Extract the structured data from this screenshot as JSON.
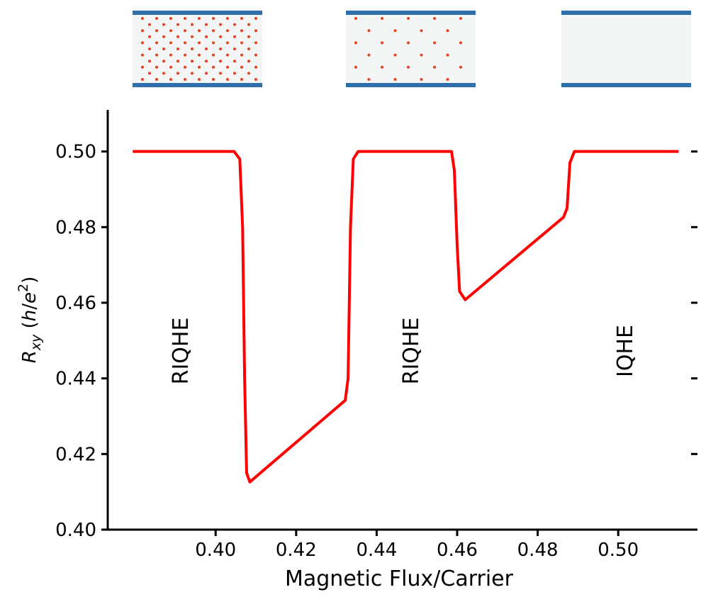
{
  "chart_data": {
    "type": "line",
    "xlabel": "Magnetic Flux/Carrier",
    "ylabel": [
      "R",
      "xy",
      " (",
      "h",
      "/",
      "e",
      "2",
      ")"
    ],
    "annotations": [
      "RIQHE",
      "RIQHE",
      "IQHE"
    ],
    "xlim": [
      0.3732,
      0.5181
    ],
    "ylim": [
      0.4,
      0.511
    ],
    "xticks": [
      {
        "value": 0.4,
        "label": "0.40"
      },
      {
        "value": 0.42,
        "label": "0.42"
      },
      {
        "value": 0.44,
        "label": "0.44"
      },
      {
        "value": 0.46,
        "label": "0.46"
      },
      {
        "value": 0.48,
        "label": "0.48"
      },
      {
        "value": 0.5,
        "label": "0.50"
      }
    ],
    "yticks": [
      {
        "value": 0.4,
        "label": "0.40"
      },
      {
        "value": 0.42,
        "label": "0.42"
      },
      {
        "value": 0.44,
        "label": "0.44"
      },
      {
        "value": 0.46,
        "label": "0.46"
      },
      {
        "value": 0.48,
        "label": "0.48"
      },
      {
        "value": 0.5,
        "label": "0.50"
      }
    ],
    "series": [
      {
        "color": "#ff0000",
        "x": [
          0.3794,
          0.4046,
          0.406,
          0.4067,
          0.4072,
          0.4077,
          0.4085,
          0.4322,
          0.4329,
          0.4335,
          0.4342,
          0.4354,
          0.4586,
          0.4593,
          0.46,
          0.4606,
          0.462,
          0.4864,
          0.4873,
          0.488,
          0.4891,
          0.515
        ],
        "values": [
          0.5,
          0.5,
          0.498,
          0.48,
          0.44,
          0.415,
          0.4126,
          0.4342,
          0.44,
          0.48,
          0.498,
          0.5,
          0.5,
          0.495,
          0.475,
          0.463,
          0.4608,
          0.4826,
          0.485,
          0.497,
          0.5,
          0.5
        ]
      }
    ]
  }
}
